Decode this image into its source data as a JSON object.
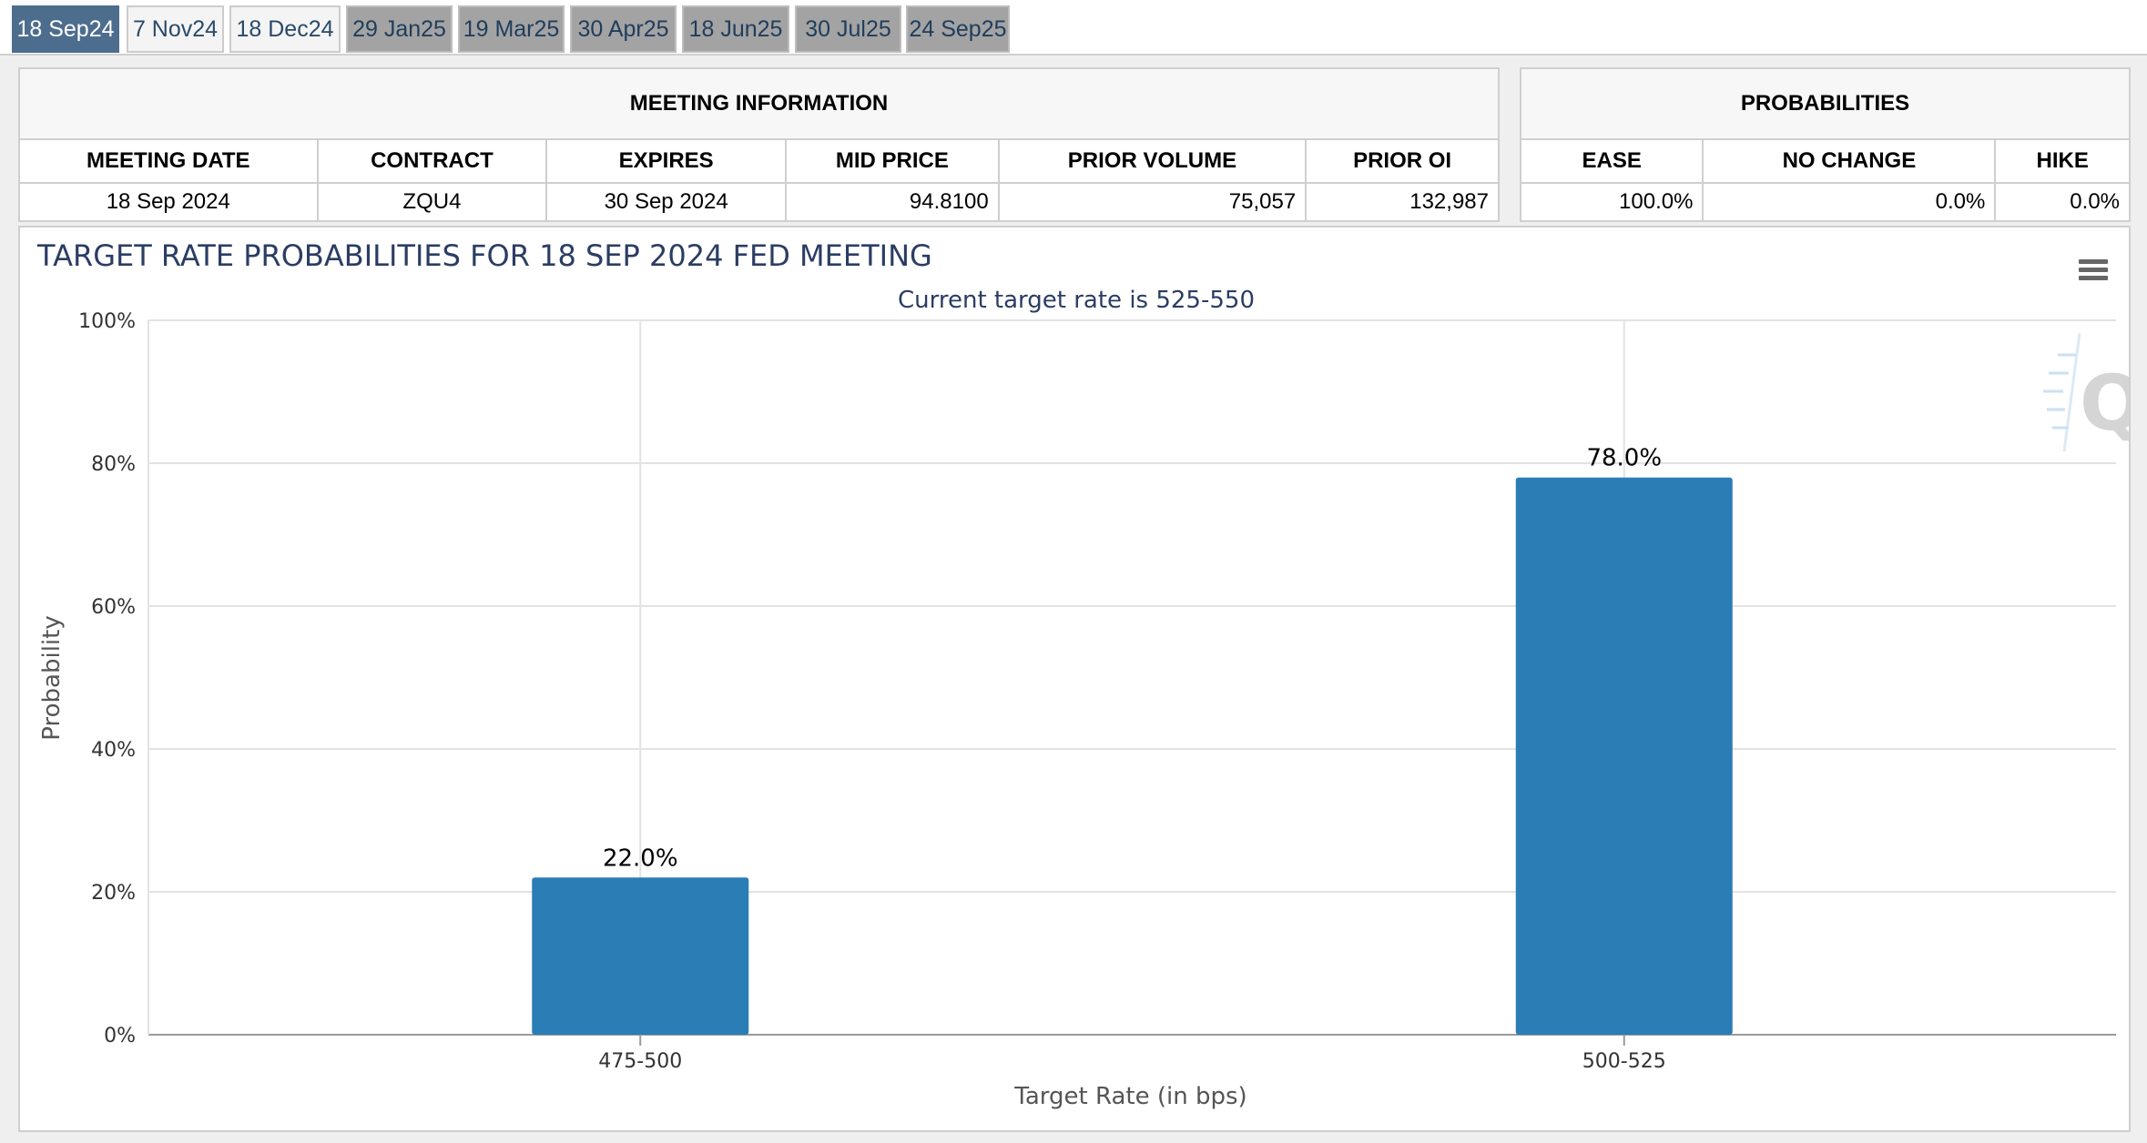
{
  "tabs": [
    {
      "label": "18 Sep24",
      "state": "active"
    },
    {
      "label": "7 Nov24",
      "state": "light"
    },
    {
      "label": "18 Dec24",
      "state": "light"
    },
    {
      "label": "29 Jan25",
      "state": "gray"
    },
    {
      "label": "19 Mar25",
      "state": "gray"
    },
    {
      "label": "30 Apr25",
      "state": "gray"
    },
    {
      "label": "18 Jun25",
      "state": "gray"
    },
    {
      "label": "30 Jul25",
      "state": "gray"
    },
    {
      "label": "24 Sep25",
      "state": "gray"
    }
  ],
  "meeting_info": {
    "title": "MEETING INFORMATION",
    "headers": [
      "MEETING DATE",
      "CONTRACT",
      "EXPIRES",
      "MID PRICE",
      "PRIOR VOLUME",
      "PRIOR OI"
    ],
    "row": [
      "18 Sep 2024",
      "ZQU4",
      "30 Sep 2024",
      "94.8100",
      "75,057",
      "132,987"
    ]
  },
  "probabilities": {
    "title": "PROBABILITIES",
    "headers": [
      "EASE",
      "NO CHANGE",
      "HIKE"
    ],
    "row": [
      "100.0%",
      "0.0%",
      "0.0%"
    ]
  },
  "chart_menu_icon": "hamburger-menu-icon",
  "watermark_icon": "q-logo-icon",
  "colors": {
    "bar": "#2a7db5",
    "title": "#2b3d63",
    "active_tab": "#4d6d8e",
    "gray_tab": "#a3a3a3"
  },
  "chart_data": {
    "type": "bar",
    "title": "TARGET RATE PROBABILITIES FOR 18 SEP 2024 FED MEETING",
    "subtitle": "Current target rate is 525-550",
    "xlabel": "Target Rate (in bps)",
    "ylabel": "Probability",
    "categories": [
      "475-500",
      "500-525"
    ],
    "values": [
      22.0,
      78.0
    ],
    "data_labels": [
      "22.0%",
      "78.0%"
    ],
    "ylim": [
      0,
      100
    ],
    "yticks": [
      "0%",
      "20%",
      "40%",
      "60%",
      "80%",
      "100%"
    ],
    "grid": true,
    "legend": "none"
  }
}
